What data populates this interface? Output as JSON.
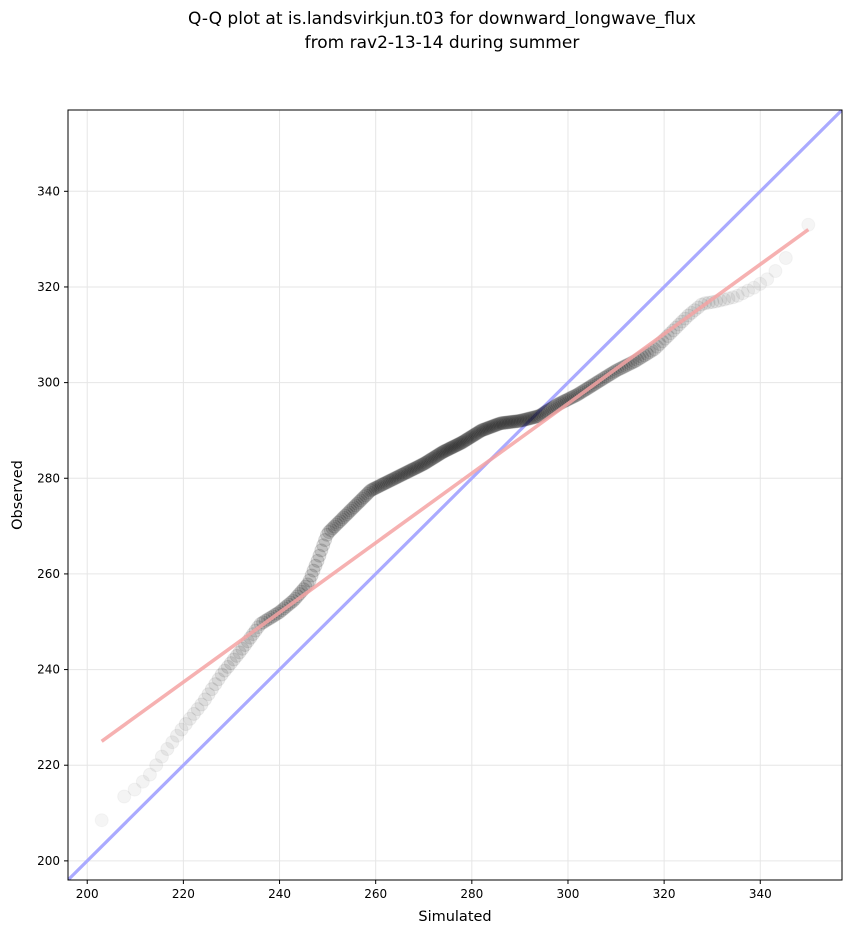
{
  "chart_data": {
    "type": "scatter",
    "title": "Q-Q plot at is.landsvirkjun.t03 for downward_longwave_flux",
    "subtitle": "from rav2-13-14 during summer",
    "xlabel": "Simulated",
    "ylabel": "Observed",
    "xlim": [
      196,
      357
    ],
    "ylim": [
      196,
      357
    ],
    "xticks": [
      200,
      220,
      240,
      260,
      280,
      300,
      320,
      340
    ],
    "yticks": [
      200,
      220,
      240,
      260,
      280,
      300,
      320,
      340
    ],
    "grid": true,
    "colors": {
      "points": "#000000",
      "identity_line": "#aaaaff",
      "fit_line": "#f5a3a3",
      "grid": "#e6e6e6"
    },
    "identity_line": {
      "x": [
        196,
        357
      ],
      "y": [
        196,
        357
      ]
    },
    "fit_line": {
      "x": [
        203,
        350
      ],
      "y": [
        225,
        332
      ]
    },
    "curve_knots": {
      "x": [
        203,
        204,
        207,
        210,
        213,
        216,
        220,
        224,
        228,
        232,
        236,
        240,
        243,
        246,
        248,
        250,
        253,
        256,
        259,
        262,
        266,
        270,
        274,
        278,
        282,
        286,
        290,
        294,
        298,
        302,
        306,
        310,
        314,
        318,
        322,
        325,
        328,
        331,
        335,
        339,
        342,
        345,
        347,
        350
      ],
      "y": [
        208.5,
        211.5,
        213,
        215,
        218,
        222.5,
        228,
        233,
        239,
        244,
        249.5,
        252,
        254.5,
        258,
        263,
        268.5,
        271.5,
        274.5,
        277.5,
        279,
        281,
        283,
        285.5,
        287.5,
        290,
        291.5,
        292,
        293,
        295.5,
        297.5,
        300,
        302.5,
        304.5,
        307,
        311,
        314,
        316.5,
        317,
        318,
        320,
        322,
        325.5,
        329,
        333
      ]
    },
    "point_count": 300
  }
}
